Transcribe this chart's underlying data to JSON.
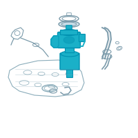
{
  "bg_color": "#ffffff",
  "border_color": "#e0e0e0",
  "hl": "#1ab0c8",
  "hl2": "#0090b0",
  "gray": "#7a9aaa",
  "lgray": "#a0b8c8",
  "fig_width": 2.0,
  "fig_height": 2.0,
  "dpi": 100,
  "tank_color": "none",
  "tank_edge": "#8aacba"
}
